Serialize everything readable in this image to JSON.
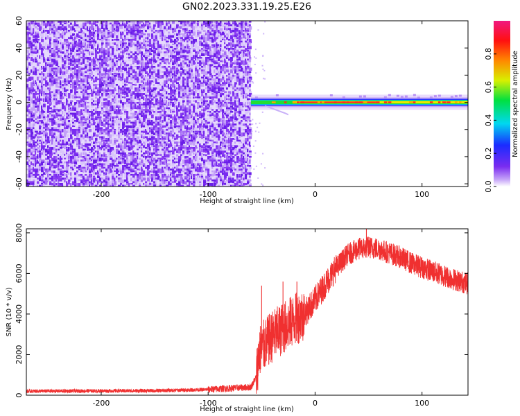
{
  "title": "GN02.2023.331.19.25.E26",
  "colors": {
    "snr_line": "#f03030",
    "noise_purple": "#7a2cf0",
    "noise_light": "#d8c4fa",
    "frame": "#000000"
  },
  "chart_data": [
    {
      "type": "heatmap",
      "name": "spectrogram",
      "xlabel": "Height of straight line (km)",
      "ylabel": "Frequency (Hz)",
      "xlim": [
        -270,
        143
      ],
      "ylim": [
        -62,
        60
      ],
      "x_ticks": [
        -200,
        -100,
        0,
        100
      ],
      "y_ticks": [
        -60,
        -40,
        -20,
        0,
        20,
        40,
        60
      ],
      "colorbar": {
        "label": "Normalized spectral amplitude",
        "range": [
          0,
          1
        ],
        "ticks": [
          0.0,
          0.2,
          0.4,
          0.6,
          0.8
        ],
        "colormap": "rainbow (violet to red to magenta)"
      },
      "features": {
        "noise_region_x": [
          -270,
          -60
        ],
        "signal_band_x": [
          -60,
          143
        ],
        "signal_band_frequency_hz": 0
      }
    },
    {
      "type": "line",
      "name": "snr",
      "xlabel": "Height of straight line (km)",
      "ylabel": "SNR (10 * v/v)",
      "xlim": [
        -270,
        143
      ],
      "ylim": [
        0,
        8200
      ],
      "x_ticks": [
        -200,
        -100,
        0,
        100
      ],
      "y_ticks": [
        0,
        2000,
        4000,
        6000,
        8000
      ],
      "x": [
        -270,
        -150,
        -100,
        -60,
        -55,
        -52,
        -45,
        -40,
        -30,
        -20,
        -10,
        0,
        10,
        20,
        30,
        40,
        50,
        60,
        70,
        80,
        90,
        100,
        110,
        120,
        130,
        143
      ],
      "y": [
        200,
        220,
        280,
        400,
        900,
        2200,
        2600,
        2900,
        3300,
        3700,
        4000,
        4700,
        5500,
        6300,
        6900,
        7200,
        7300,
        7200,
        7000,
        6800,
        6500,
        6300,
        6100,
        5900,
        5700,
        5500
      ],
      "spikes": [
        {
          "x": -50,
          "y": 5400
        },
        {
          "x": -30,
          "y": 5600
        },
        {
          "x": -17,
          "y": 5600
        },
        {
          "x": 48,
          "y": 8200
        }
      ]
    }
  ]
}
